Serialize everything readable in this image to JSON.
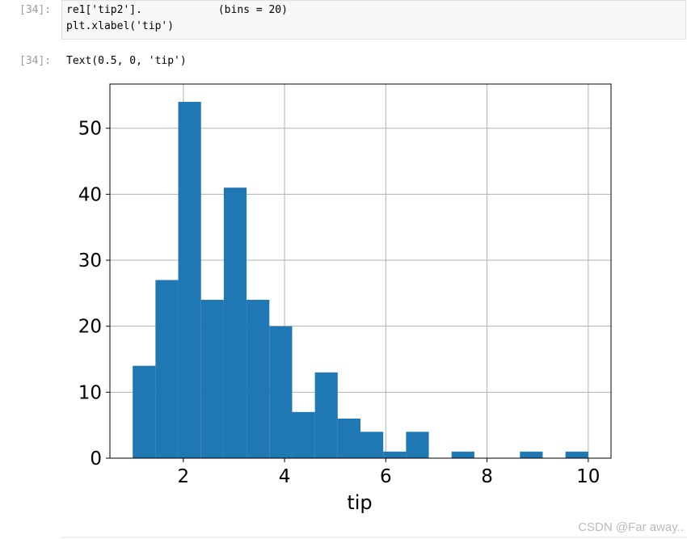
{
  "input_cell": {
    "prompt": "[34]:",
    "lines": [
      "re1['tip2'].            (bins = 20)",
      "plt.xlabel('tip')"
    ]
  },
  "output_cell": {
    "prompt": "[34]:",
    "text": "Text(0.5, 0, 'tip')"
  },
  "watermark": "CSDN @Far away..",
  "chart_data": {
    "type": "histogram",
    "xlabel": "tip",
    "bins": [
      1,
      1.45,
      1.9,
      2.35,
      2.8,
      3.25,
      3.7,
      4.15,
      4.6,
      5.05,
      5.5,
      5.95,
      6.4,
      6.85,
      7.3,
      7.75,
      8.2,
      8.65,
      9.1,
      9.55,
      10
    ],
    "values": [
      14,
      27,
      54,
      24,
      41,
      24,
      20,
      7,
      13,
      6,
      4,
      1,
      4,
      0,
      1,
      0,
      0,
      1,
      0,
      1
    ],
    "color": "#1f77b4",
    "xlim": [
      0.55,
      10.45
    ],
    "ylim": [
      0,
      56.7
    ],
    "xticks": [
      2,
      4,
      6,
      8,
      10
    ],
    "yticks": [
      0,
      10,
      20,
      30,
      40,
      50
    ],
    "grid": true
  }
}
